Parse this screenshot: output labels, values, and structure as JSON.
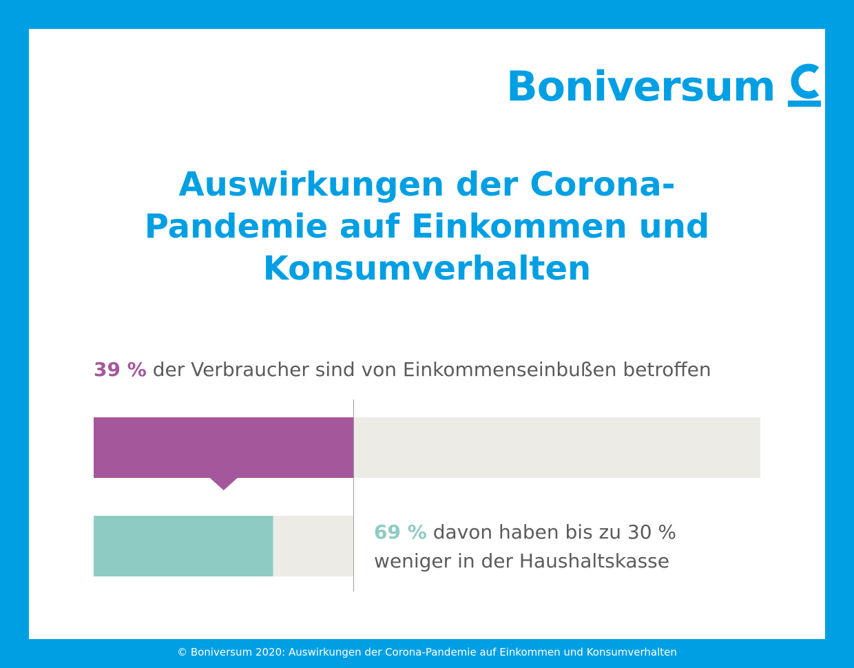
{
  "brand": {
    "name": "Boniversum",
    "color": "#009fe3"
  },
  "title": {
    "line1": "Auswirkungen der Corona-",
    "line2": "Pandemie auf Einkommen und",
    "line3": "Konsumverhalten"
  },
  "chart_data": {
    "type": "bar",
    "bars": [
      {
        "value_label": "39 %",
        "text": "der Verbraucher sind von Einkommenseinbußen betroffen",
        "value": 39,
        "max": 100,
        "color": "#a5579c",
        "track_color": "#ecebe6"
      },
      {
        "value_label": "69 %",
        "text_line1": "davon haben bis zu 30 %",
        "text_line2": "weniger in der Haushaltskasse",
        "value": 69,
        "max": 100,
        "color": "#8ecbc3",
        "track_color": "#ecebe6"
      }
    ]
  },
  "footer": "© Boniversum 2020: Auswirkungen der Corona-Pandemie auf Einkommen und Konsumverhalten"
}
